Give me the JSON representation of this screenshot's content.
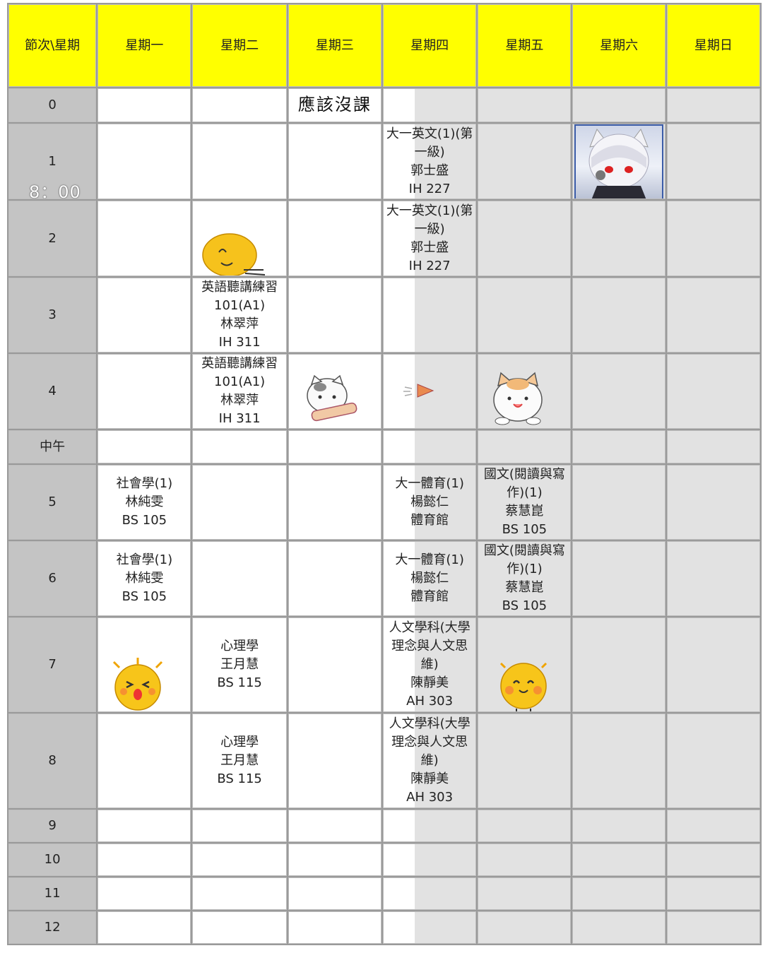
{
  "header": {
    "corner": "節次\\星期",
    "days": [
      "星期一",
      "星期二",
      "星期三",
      "星期四",
      "星期五",
      "星期六",
      "星期日"
    ]
  },
  "rows": [
    {
      "label": "0"
    },
    {
      "label": "1"
    },
    {
      "label": "2"
    },
    {
      "label": "3"
    },
    {
      "label": "4"
    },
    {
      "label": "中午"
    },
    {
      "label": "5"
    },
    {
      "label": "6"
    },
    {
      "label": "7"
    },
    {
      "label": "8"
    },
    {
      "label": "9"
    },
    {
      "label": "10"
    },
    {
      "label": "11"
    },
    {
      "label": "12"
    }
  ],
  "annotations": {
    "no_class": "應該沒課",
    "time_mark": "8：00"
  },
  "courses": {
    "english_reading": {
      "l1": "大一英文(1)(第",
      "l2": "一級)",
      "teacher": "郭士盛",
      "room": "IH 227"
    },
    "listening": {
      "l1": "英語聽講練習",
      "l2": "101(A1)",
      "teacher": "林翠萍",
      "room": "IH 311"
    },
    "sociology": {
      "l1": "社會學(1)",
      "teacher": "林純雯",
      "room": "BS 105"
    },
    "pe": {
      "l1": "大一體育(1)",
      "teacher": "楊懿仁",
      "room": "體育館"
    },
    "chinese": {
      "l1": "國文(閱讀與寫",
      "l2": "作)(1)",
      "teacher": "蔡慧崑",
      "room": "BS 105"
    },
    "psychology": {
      "l1": "心理學",
      "teacher": "王月慧",
      "room": "BS 115"
    },
    "humanities": {
      "l1": "人文學科(大學",
      "l2": "理念與人文思",
      "l3": "維)",
      "teacher": "陳靜美",
      "room": "AH 303"
    }
  },
  "colors": {
    "header_bg": "#ffff00",
    "period_bg": "#c4c4c4",
    "cell_bg": "#ffffff",
    "weekend_bg": "#e2e2e2",
    "grid": "#9a9a9a"
  },
  "stickers": [
    "blob-face-sticker",
    "cat-scroll-sticker",
    "tiny-bird-sticker",
    "cat-sticker",
    "excited-blob-sticker",
    "happy-blob-sticker",
    "anime-girl-avatar"
  ]
}
